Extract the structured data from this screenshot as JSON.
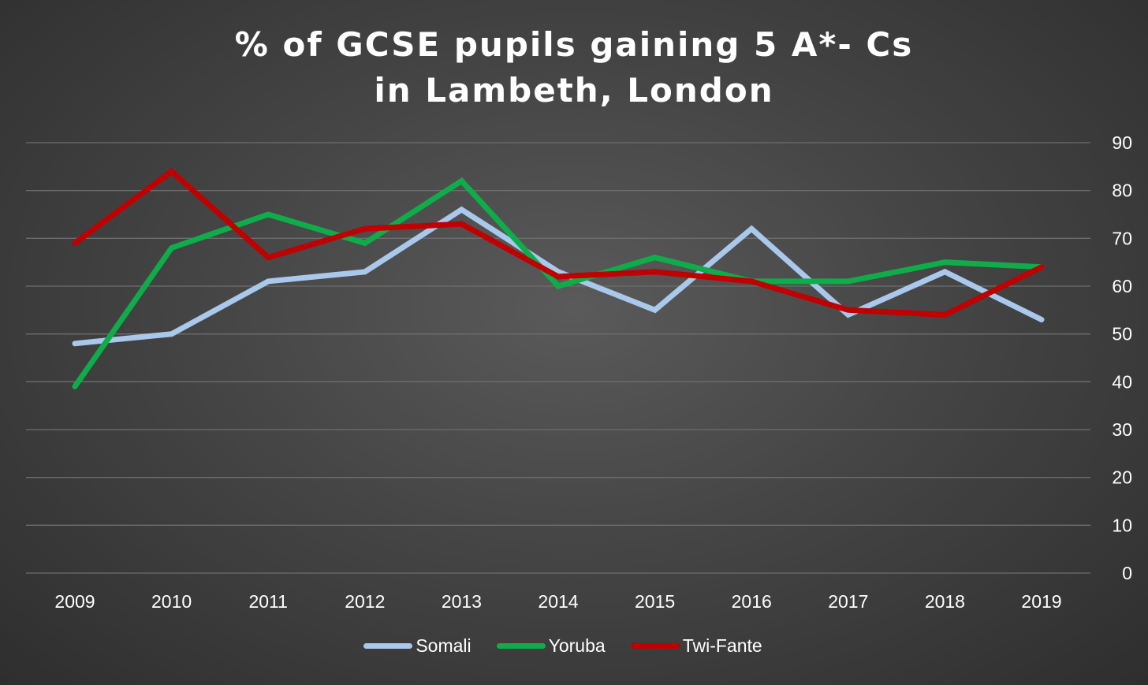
{
  "chart_data": {
    "type": "line",
    "title_lines": [
      "% of GCSE pupils gaining 5 A*- Cs",
      "in Lambeth, London"
    ],
    "xlabel": "",
    "ylabel": "",
    "categories": [
      "2009",
      "2010",
      "2011",
      "2012",
      "2013",
      "2014",
      "2015",
      "2016",
      "2017",
      "2018",
      "2019"
    ],
    "ylim": [
      0,
      90
    ],
    "yticks": [
      0,
      10,
      20,
      30,
      40,
      50,
      60,
      70,
      80,
      90
    ],
    "y_axis_side": "right",
    "grid": true,
    "legend_position": "bottom",
    "series": [
      {
        "name": "Somali",
        "color": "#a9c8ec",
        "values": [
          48,
          50,
          61,
          63,
          76,
          63,
          55,
          72,
          54,
          63,
          53
        ]
      },
      {
        "name": "Yoruba",
        "color": "#0fad4a",
        "values": [
          39,
          68,
          75,
          69,
          82,
          60,
          66,
          61,
          61,
          65,
          64
        ]
      },
      {
        "name": "Twi-Fante",
        "color": "#c00000",
        "values": [
          69,
          84,
          66,
          72,
          73,
          62,
          63,
          61,
          55,
          54,
          64
        ]
      }
    ]
  },
  "colors": {
    "gridline": "#6e6e6e",
    "text": "#ffffff"
  }
}
